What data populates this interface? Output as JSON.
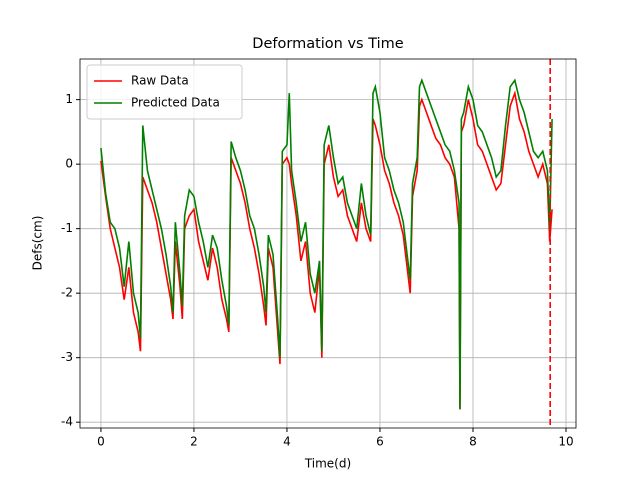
{
  "chart_data": {
    "type": "line",
    "title": "Deformation vs Time",
    "x_label": "Time(d)",
    "y_label": "Defs(cm)",
    "x": [
      0.0,
      0.1,
      0.2,
      0.3,
      0.4,
      0.5,
      0.6,
      0.7,
      0.8,
      0.85,
      0.9,
      1.0,
      1.1,
      1.2,
      1.3,
      1.4,
      1.5,
      1.55,
      1.6,
      1.7,
      1.75,
      1.8,
      1.9,
      2.0,
      2.1,
      2.2,
      2.3,
      2.4,
      2.5,
      2.6,
      2.7,
      2.75,
      2.8,
      2.9,
      3.0,
      3.1,
      3.2,
      3.3,
      3.4,
      3.5,
      3.55,
      3.6,
      3.7,
      3.8,
      3.85,
      3.9,
      4.0,
      4.05,
      4.1,
      4.2,
      4.3,
      4.4,
      4.5,
      4.6,
      4.7,
      4.75,
      4.8,
      4.9,
      5.0,
      5.1,
      5.2,
      5.3,
      5.4,
      5.5,
      5.6,
      5.7,
      5.8,
      5.85,
      5.9,
      6.0,
      6.1,
      6.2,
      6.3,
      6.4,
      6.5,
      6.6,
      6.65,
      6.7,
      6.8,
      6.85,
      6.9,
      7.0,
      7.1,
      7.2,
      7.3,
      7.4,
      7.5,
      7.6,
      7.7,
      7.72,
      7.75,
      7.8,
      7.9,
      8.0,
      8.1,
      8.2,
      8.3,
      8.4,
      8.5,
      8.6,
      8.7,
      8.8,
      8.9,
      9.0,
      9.1,
      9.2,
      9.3,
      9.4,
      9.5,
      9.6,
      9.65,
      9.7
    ],
    "series": [
      {
        "name": "Raw Data",
        "color": "#ff0000",
        "values": [
          0.05,
          -0.5,
          -1.0,
          -1.3,
          -1.6,
          -2.1,
          -1.6,
          -2.3,
          -2.6,
          -2.9,
          -0.2,
          -0.4,
          -0.6,
          -0.9,
          -1.3,
          -1.7,
          -2.1,
          -2.4,
          -1.2,
          -1.9,
          -2.4,
          -1.0,
          -0.8,
          -0.7,
          -1.2,
          -1.5,
          -1.8,
          -1.3,
          -1.6,
          -2.1,
          -2.4,
          -2.6,
          0.1,
          -0.1,
          -0.3,
          -0.6,
          -1.0,
          -1.3,
          -1.7,
          -2.2,
          -2.5,
          -1.3,
          -1.6,
          -2.6,
          -3.1,
          0.0,
          0.1,
          0.0,
          -0.3,
          -0.8,
          -1.5,
          -1.2,
          -2.0,
          -2.3,
          -1.6,
          -3.0,
          0.0,
          0.3,
          -0.2,
          -0.5,
          -0.4,
          -0.8,
          -1.0,
          -1.2,
          -0.6,
          -1.0,
          -1.2,
          0.7,
          0.6,
          0.3,
          -0.1,
          -0.3,
          -0.6,
          -0.8,
          -1.1,
          -1.7,
          -2.0,
          -0.5,
          -0.1,
          0.9,
          1.0,
          0.8,
          0.6,
          0.4,
          0.3,
          0.1,
          0.0,
          -0.2,
          -1.0,
          -3.8,
          0.5,
          0.6,
          1.0,
          0.7,
          0.3,
          0.2,
          0.0,
          -0.2,
          -0.4,
          -0.3,
          0.3,
          0.9,
          1.1,
          0.7,
          0.5,
          0.2,
          0.0,
          -0.2,
          0.0,
          -0.3,
          -1.2,
          -0.7
        ]
      },
      {
        "name": "Predicted Data",
        "color": "#008000",
        "values": [
          0.25,
          -0.45,
          -0.9,
          -1.0,
          -1.3,
          -1.9,
          -1.2,
          -2.0,
          -2.3,
          -2.7,
          0.6,
          -0.1,
          -0.4,
          -0.7,
          -1.0,
          -1.4,
          -1.9,
          -2.3,
          -0.9,
          -1.7,
          -2.2,
          -0.8,
          -0.4,
          -0.5,
          -0.9,
          -1.2,
          -1.6,
          -1.1,
          -1.3,
          -1.8,
          -2.2,
          -2.5,
          0.35,
          0.1,
          -0.1,
          -0.4,
          -0.8,
          -1.0,
          -1.4,
          -1.9,
          -2.3,
          -1.1,
          -1.4,
          -2.4,
          -3.0,
          0.2,
          0.3,
          1.1,
          -0.1,
          -0.6,
          -1.2,
          -0.9,
          -1.7,
          -2.0,
          -1.5,
          -2.9,
          0.3,
          0.6,
          0.1,
          -0.3,
          -0.2,
          -0.6,
          -0.8,
          -1.0,
          -0.3,
          -0.8,
          -1.1,
          1.1,
          1.2,
          0.8,
          0.1,
          -0.1,
          -0.4,
          -0.6,
          -0.9,
          -1.5,
          -1.8,
          -0.3,
          0.1,
          1.2,
          1.3,
          1.1,
          0.9,
          0.7,
          0.5,
          0.3,
          0.2,
          -0.1,
          -0.6,
          -3.8,
          0.7,
          0.8,
          1.2,
          1.0,
          0.6,
          0.5,
          0.3,
          0.1,
          -0.2,
          -0.1,
          0.6,
          1.2,
          1.3,
          1.0,
          0.8,
          0.5,
          0.2,
          0.1,
          0.2,
          -0.1,
          -1.0,
          0.7
        ]
      }
    ],
    "vline": 9.66,
    "vline_color": "#ff0000",
    "xlim": [
      -0.45,
      10.215
    ],
    "ylim": [
      -4.09,
      1.63
    ],
    "xticks": [
      0,
      2,
      4,
      6,
      8,
      10
    ],
    "yticks": [
      -4,
      -3,
      -2,
      -1,
      0,
      1
    ],
    "grid": true,
    "legend": "upper left"
  }
}
